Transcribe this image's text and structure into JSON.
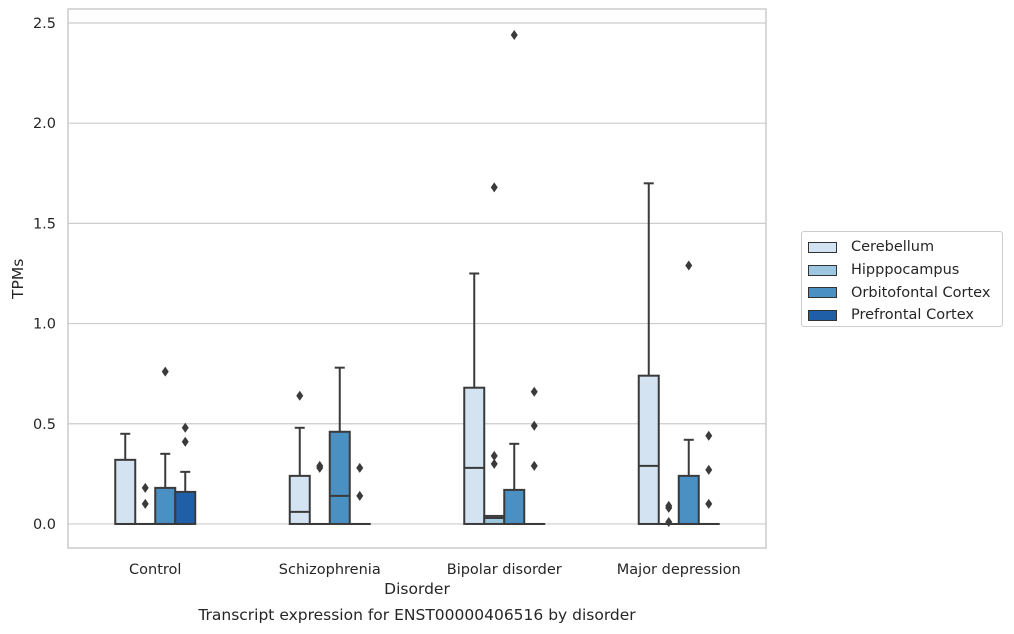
{
  "chart_data": {
    "type": "box",
    "title": "",
    "caption": "Transcript expression for ENST00000406516 by disorder",
    "xlabel": "Disorder",
    "ylabel": "TPMs",
    "ylim": [
      -0.12,
      2.57
    ],
    "yticks": [
      "0.0",
      "0.5",
      "1.0",
      "1.5",
      "2.0",
      "2.5"
    ],
    "ytick_values": [
      0.0,
      0.5,
      1.0,
      1.5,
      2.0,
      2.5
    ],
    "categories": [
      "Control",
      "Schizophrenia",
      "Bipolar disorder",
      "Major depression"
    ],
    "grid": "horizontal",
    "legend_position": "right",
    "series": [
      {
        "name": "Cerebellum",
        "color": "#d3e3f2",
        "boxes": [
          {
            "q1": 0.0,
            "median": 0.0,
            "q3": 0.32,
            "whisker_low": 0.0,
            "whisker_high": 0.45,
            "outliers": []
          },
          {
            "q1": 0.0,
            "median": 0.06,
            "q3": 0.24,
            "whisker_low": 0.0,
            "whisker_high": 0.48,
            "outliers": [
              0.64
            ]
          },
          {
            "q1": 0.0,
            "median": 0.28,
            "q3": 0.68,
            "whisker_low": 0.0,
            "whisker_high": 1.25,
            "outliers": []
          },
          {
            "q1": 0.0,
            "median": 0.29,
            "q3": 0.74,
            "whisker_low": 0.0,
            "whisker_high": 1.7,
            "outliers": []
          }
        ]
      },
      {
        "name": "Hipppocampus",
        "color": "#9dc7e0",
        "boxes": [
          {
            "q1": 0.0,
            "median": 0.0,
            "q3": 0.0,
            "whisker_low": 0.0,
            "whisker_high": 0.0,
            "outliers": [
              0.1,
              0.18
            ]
          },
          {
            "q1": 0.0,
            "median": 0.0,
            "q3": 0.0,
            "whisker_low": 0.0,
            "whisker_high": 0.0,
            "outliers": [
              0.28,
              0.29
            ]
          },
          {
            "q1": 0.0,
            "median": 0.03,
            "q3": 0.04,
            "whisker_low": 0.0,
            "whisker_high": 0.04,
            "outliers": [
              0.3,
              0.34,
              1.68
            ]
          },
          {
            "q1": 0.0,
            "median": 0.0,
            "q3": 0.0,
            "whisker_low": 0.0,
            "whisker_high": 0.0,
            "outliers": [
              0.01,
              0.08,
              0.09
            ]
          }
        ]
      },
      {
        "name": "Orbitofontal Cortex",
        "color": "#4a90c2",
        "boxes": [
          {
            "q1": 0.0,
            "median": 0.0,
            "q3": 0.18,
            "whisker_low": 0.0,
            "whisker_high": 0.35,
            "outliers": [
              0.76
            ]
          },
          {
            "q1": 0.0,
            "median": 0.14,
            "q3": 0.46,
            "whisker_low": 0.0,
            "whisker_high": 0.78,
            "outliers": []
          },
          {
            "q1": 0.0,
            "median": 0.0,
            "q3": 0.17,
            "whisker_low": 0.0,
            "whisker_high": 0.4,
            "outliers": [
              2.44
            ]
          },
          {
            "q1": 0.0,
            "median": 0.0,
            "q3": 0.24,
            "whisker_low": 0.0,
            "whisker_high": 0.42,
            "outliers": [
              1.29
            ]
          }
        ]
      },
      {
        "name": "Prefrontal Cortex",
        "color": "#1f5fa8",
        "boxes": [
          {
            "q1": 0.0,
            "median": 0.0,
            "q3": 0.16,
            "whisker_low": 0.0,
            "whisker_high": 0.26,
            "outliers": [
              0.41,
              0.48
            ]
          },
          {
            "q1": 0.0,
            "median": 0.0,
            "q3": 0.0,
            "whisker_low": 0.0,
            "whisker_high": 0.0,
            "outliers": [
              0.14,
              0.28
            ]
          },
          {
            "q1": 0.0,
            "median": 0.0,
            "q3": 0.0,
            "whisker_low": 0.0,
            "whisker_high": 0.0,
            "outliers": [
              0.29,
              0.49,
              0.66
            ]
          },
          {
            "q1": 0.0,
            "median": 0.0,
            "q3": 0.0,
            "whisker_low": 0.0,
            "whisker_high": 0.0,
            "outliers": [
              0.1,
              0.27,
              0.44
            ]
          }
        ]
      }
    ]
  }
}
